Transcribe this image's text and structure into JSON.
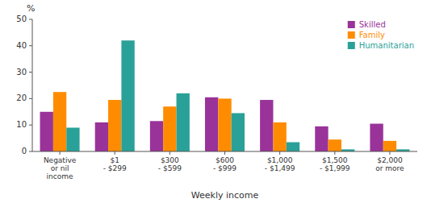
{
  "chart_data": {
    "type": "bar",
    "categories": [
      "Negative\nor nil\nincome",
      "$1\n- $299",
      "$300\n- $599",
      "$600\n- $999",
      "$1,000\n- $1,499",
      "$1,500\n- $1,999",
      "$2,000\nor more"
    ],
    "series": [
      {
        "name": "Skilled",
        "color": "#993399",
        "values": [
          15,
          11,
          11.5,
          20.5,
          19.5,
          9.5,
          10.5
        ]
      },
      {
        "name": "Family",
        "color": "#FF8C00",
        "values": [
          22.5,
          19.5,
          17,
          20,
          11,
          4.5,
          4
        ]
      },
      {
        "name": "Humanitarian",
        "color": "#2aa198",
        "values": [
          9,
          42,
          22,
          14.5,
          3.5,
          0.8,
          0.8
        ]
      }
    ],
    "xlabel": "Weekly income",
    "ylabel": "%",
    "ylim": [
      0,
      50
    ],
    "yticks": [
      0,
      10,
      20,
      30,
      40,
      50
    ],
    "grid": false,
    "legend": "upper right"
  }
}
